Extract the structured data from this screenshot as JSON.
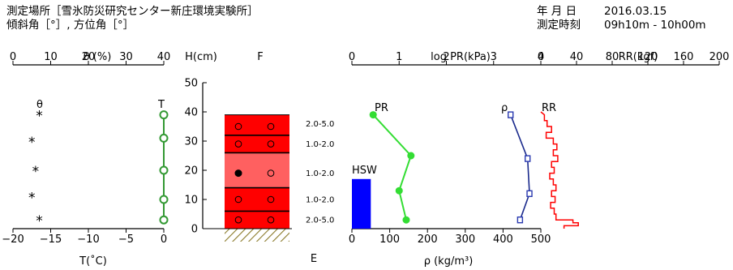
{
  "header": {
    "location_label": "測定場所［雪氷防災研究センター新庄環境実験所］",
    "angles_label": "傾斜角［°］, 方位角［°］",
    "date_label": "年 月 日",
    "date_value": "2016.03.15",
    "time_label": "測定時刻",
    "time_value": "09h10m - 10h00m"
  },
  "chart_data": [
    {
      "type": "scatter",
      "id": "theta-temperature",
      "top_label": "θ (%)",
      "top_ticks": [
        "0",
        "10",
        "20",
        "30",
        "40"
      ],
      "theta_range": [
        0,
        40
      ],
      "xlabel": "T(˚C)",
      "xlim": [
        -20,
        0
      ],
      "x_ticks": [
        "−20",
        "−15",
        "−10",
        "−5",
        "0"
      ],
      "series": [
        {
          "name": "θ",
          "marker": "*",
          "points": [
            {
              "value": 7,
              "h": 39
            },
            {
              "value": 5,
              "h": 30
            },
            {
              "value": 6,
              "h": 20
            },
            {
              "value": 5,
              "h": 11
            },
            {
              "value": 7,
              "h": 3
            }
          ]
        },
        {
          "name": "T",
          "color": "#339933",
          "points": [
            {
              "value": 0,
              "h": 39
            },
            {
              "value": 0,
              "h": 31
            },
            {
              "value": 0,
              "h": 20
            },
            {
              "value": 0,
              "h": 10
            },
            {
              "value": 0,
              "h": 3
            }
          ]
        }
      ]
    },
    {
      "type": "table",
      "id": "snow-profile",
      "ylabel": "H(cm)",
      "ylim": [
        0,
        50
      ],
      "y_ticks": [
        "0",
        "10",
        "20",
        "30",
        "40",
        "50"
      ],
      "top_label": "F",
      "bottom_label": "E",
      "snow_height": 39,
      "layers": [
        {
          "bottom": 32,
          "top": 39,
          "color": "#ff0000",
          "grain": "2.0-5.0"
        },
        {
          "bottom": 26,
          "top": 32,
          "color": "#ff0000",
          "grain": "1.0-2.0"
        },
        {
          "bottom": 14,
          "top": 26,
          "color": "#ff6060",
          "grain": "1.0-2.0"
        },
        {
          "bottom": 6,
          "top": 14,
          "color": "#ff0000",
          "grain": "1.0-2.0"
        },
        {
          "bottom": 0,
          "top": 6,
          "color": "#ff0000",
          "grain": "2.0-5.0"
        }
      ],
      "layer_lines": [
        32,
        26,
        14,
        6
      ],
      "marks": [
        {
          "h": 35,
          "left": "o",
          "right": "o"
        },
        {
          "h": 29,
          "left": "o",
          "right": "o"
        },
        {
          "h": 19,
          "left": "filled",
          "right": "o"
        },
        {
          "h": 10,
          "left": "o",
          "right": "o"
        },
        {
          "h": 3,
          "left": "o",
          "right": "o"
        }
      ],
      "grain_labels": [
        {
          "h": 36,
          "text": "2.0-5.0"
        },
        {
          "h": 29,
          "text": "1.0-2.0"
        },
        {
          "h": 19,
          "text": "1.0-2.0"
        },
        {
          "h": 10,
          "text": "1.0-2.0"
        },
        {
          "h": 3,
          "text": "2.0-5.0"
        }
      ]
    },
    {
      "type": "line",
      "id": "density-pr-hsw",
      "top_label": "log PR(kPa)",
      "pr_range": [
        0,
        4
      ],
      "pr_ticks": [
        "0",
        "1",
        "2",
        "3",
        "4"
      ],
      "xlabel": "ρ (kg/m³)",
      "xlim": [
        0,
        500
      ],
      "x_ticks": [
        "0",
        "100",
        "200",
        "300",
        "400",
        "500"
      ],
      "hsw": {
        "label": "HSW",
        "value": 50,
        "top_h": 17,
        "color": "#0000ff"
      },
      "series": [
        {
          "name": "PR",
          "color": "#33dd33",
          "points": [
            {
              "value": 0.45,
              "h": 39
            },
            {
              "value": 1.25,
              "h": 25
            },
            {
              "value": 1.0,
              "h": 13
            },
            {
              "value": 1.15,
              "h": 3
            }
          ]
        },
        {
          "name": "ρ",
          "color": "#1a2a8c",
          "points": [
            {
              "value": 420,
              "h": 39
            },
            {
              "value": 465,
              "h": 24
            },
            {
              "value": 470,
              "h": 12
            },
            {
              "value": 445,
              "h": 3
            }
          ]
        }
      ]
    },
    {
      "type": "bar",
      "id": "ram-resistance",
      "top_label": "RR(kgf)",
      "xlim": [
        0,
        200
      ],
      "x_ticks": [
        "0",
        "40",
        "80",
        "120",
        "160",
        "200"
      ],
      "series": [
        {
          "name": "RR",
          "color": "#ff0000",
          "profile": [
            {
              "h": 40,
              "value": 0
            },
            {
              "h": 39,
              "value": 4
            },
            {
              "h": 37,
              "value": 4
            },
            {
              "h": 37,
              "value": 7
            },
            {
              "h": 35,
              "value": 7
            },
            {
              "h": 35,
              "value": 12
            },
            {
              "h": 33,
              "value": 12
            },
            {
              "h": 33,
              "value": 6
            },
            {
              "h": 31,
              "value": 6
            },
            {
              "h": 31,
              "value": 14
            },
            {
              "h": 29,
              "value": 14
            },
            {
              "h": 29,
              "value": 18
            },
            {
              "h": 27,
              "value": 18
            },
            {
              "h": 27,
              "value": 14
            },
            {
              "h": 25,
              "value": 14
            },
            {
              "h": 25,
              "value": 19
            },
            {
              "h": 23,
              "value": 19
            },
            {
              "h": 23,
              "value": 12
            },
            {
              "h": 21,
              "value": 12
            },
            {
              "h": 21,
              "value": 15
            },
            {
              "h": 19,
              "value": 15
            },
            {
              "h": 19,
              "value": 10
            },
            {
              "h": 17,
              "value": 10
            },
            {
              "h": 17,
              "value": 14
            },
            {
              "h": 15,
              "value": 14
            },
            {
              "h": 15,
              "value": 17
            },
            {
              "h": 13,
              "value": 17
            },
            {
              "h": 13,
              "value": 12
            },
            {
              "h": 11,
              "value": 12
            },
            {
              "h": 11,
              "value": 16
            },
            {
              "h": 9,
              "value": 16
            },
            {
              "h": 9,
              "value": 11
            },
            {
              "h": 7,
              "value": 11
            },
            {
              "h": 7,
              "value": 15
            },
            {
              "h": 5,
              "value": 15
            },
            {
              "h": 5,
              "value": 17
            },
            {
              "h": 3,
              "value": 17
            },
            {
              "h": 3,
              "value": 36
            },
            {
              "h": 2,
              "value": 36
            },
            {
              "h": 2,
              "value": 42
            },
            {
              "h": 1,
              "value": 42
            },
            {
              "h": 1,
              "value": 26
            },
            {
              "h": 0,
              "value": 26
            }
          ]
        }
      ]
    }
  ]
}
